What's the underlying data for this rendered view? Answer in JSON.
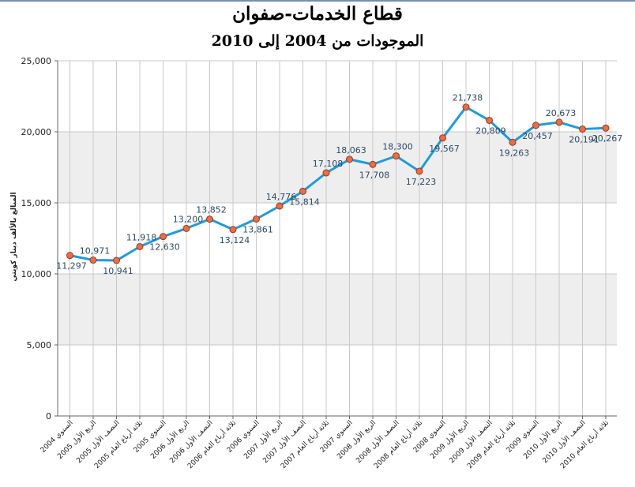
{
  "chart_data": {
    "type": "line",
    "title": "قطاع الخدمات-صفوان",
    "subtitle": "الموجودات من 2004 إلى 2010",
    "xlabel": "",
    "ylabel": "المبالغ بالألف دينار كويتي",
    "ylim": [
      0,
      25000
    ],
    "yticks": [
      "0",
      "5,000",
      "10,000",
      "15,000",
      "20,000",
      "25,000"
    ],
    "grid": true,
    "legend": "none",
    "categories": [
      "السنوي 2004",
      "الربع الأول 2005",
      "النصف الأول 2005",
      "ثلاثة أرباع العام 2005",
      "السنوي 2005",
      "الربع الأول 2006",
      "النصف الأول 2006",
      "ثلاثة أرباع العام 2006",
      "السنوي 2006",
      "الربع الأول 2007",
      "النصف الأول 2007",
      "ثلاثة أرباع العام 2007",
      "السنوي 2007",
      "الربع الأول 2008",
      "النصف الأول 2008",
      "ثلاثة أرباع العام 2008",
      "السنوي 2008",
      "الربع الأول 2009",
      "النصف الأول 2009",
      "ثلاثة أرباع العام 2009",
      "السنوي 2009",
      "الربع الأول 2010",
      "النصف الأول 2010",
      "ثلاثة أرباع العام 2010"
    ],
    "values": [
      11297,
      10971,
      10941,
      11918,
      12630,
      13200,
      13852,
      13124,
      13861,
      14776,
      15814,
      17108,
      18063,
      17708,
      18300,
      17223,
      19567,
      21738,
      20809,
      19263,
      20457,
      20673,
      20191,
      20267
    ],
    "data_labels": [
      "11,297",
      "10,971",
      "10,941",
      "11,918",
      "12,630",
      "13,200",
      "13,852",
      "13,124",
      "13,861",
      "14,776",
      "15,814",
      "17,108",
      "18,063",
      "17,708",
      "18,300",
      "17,223",
      "19,567",
      "21,738",
      "20,809",
      "19,263",
      "20,457",
      "20,673",
      "20,191",
      "20,267"
    ],
    "colors": {
      "line": "#1e9be0",
      "marker_fill": "#f26a3f",
      "marker_stroke": "#9a3a20",
      "label": "#2a4a66",
      "band": "#eeeeee",
      "grid": "#c8c8c8",
      "axis": "#666666"
    }
  }
}
